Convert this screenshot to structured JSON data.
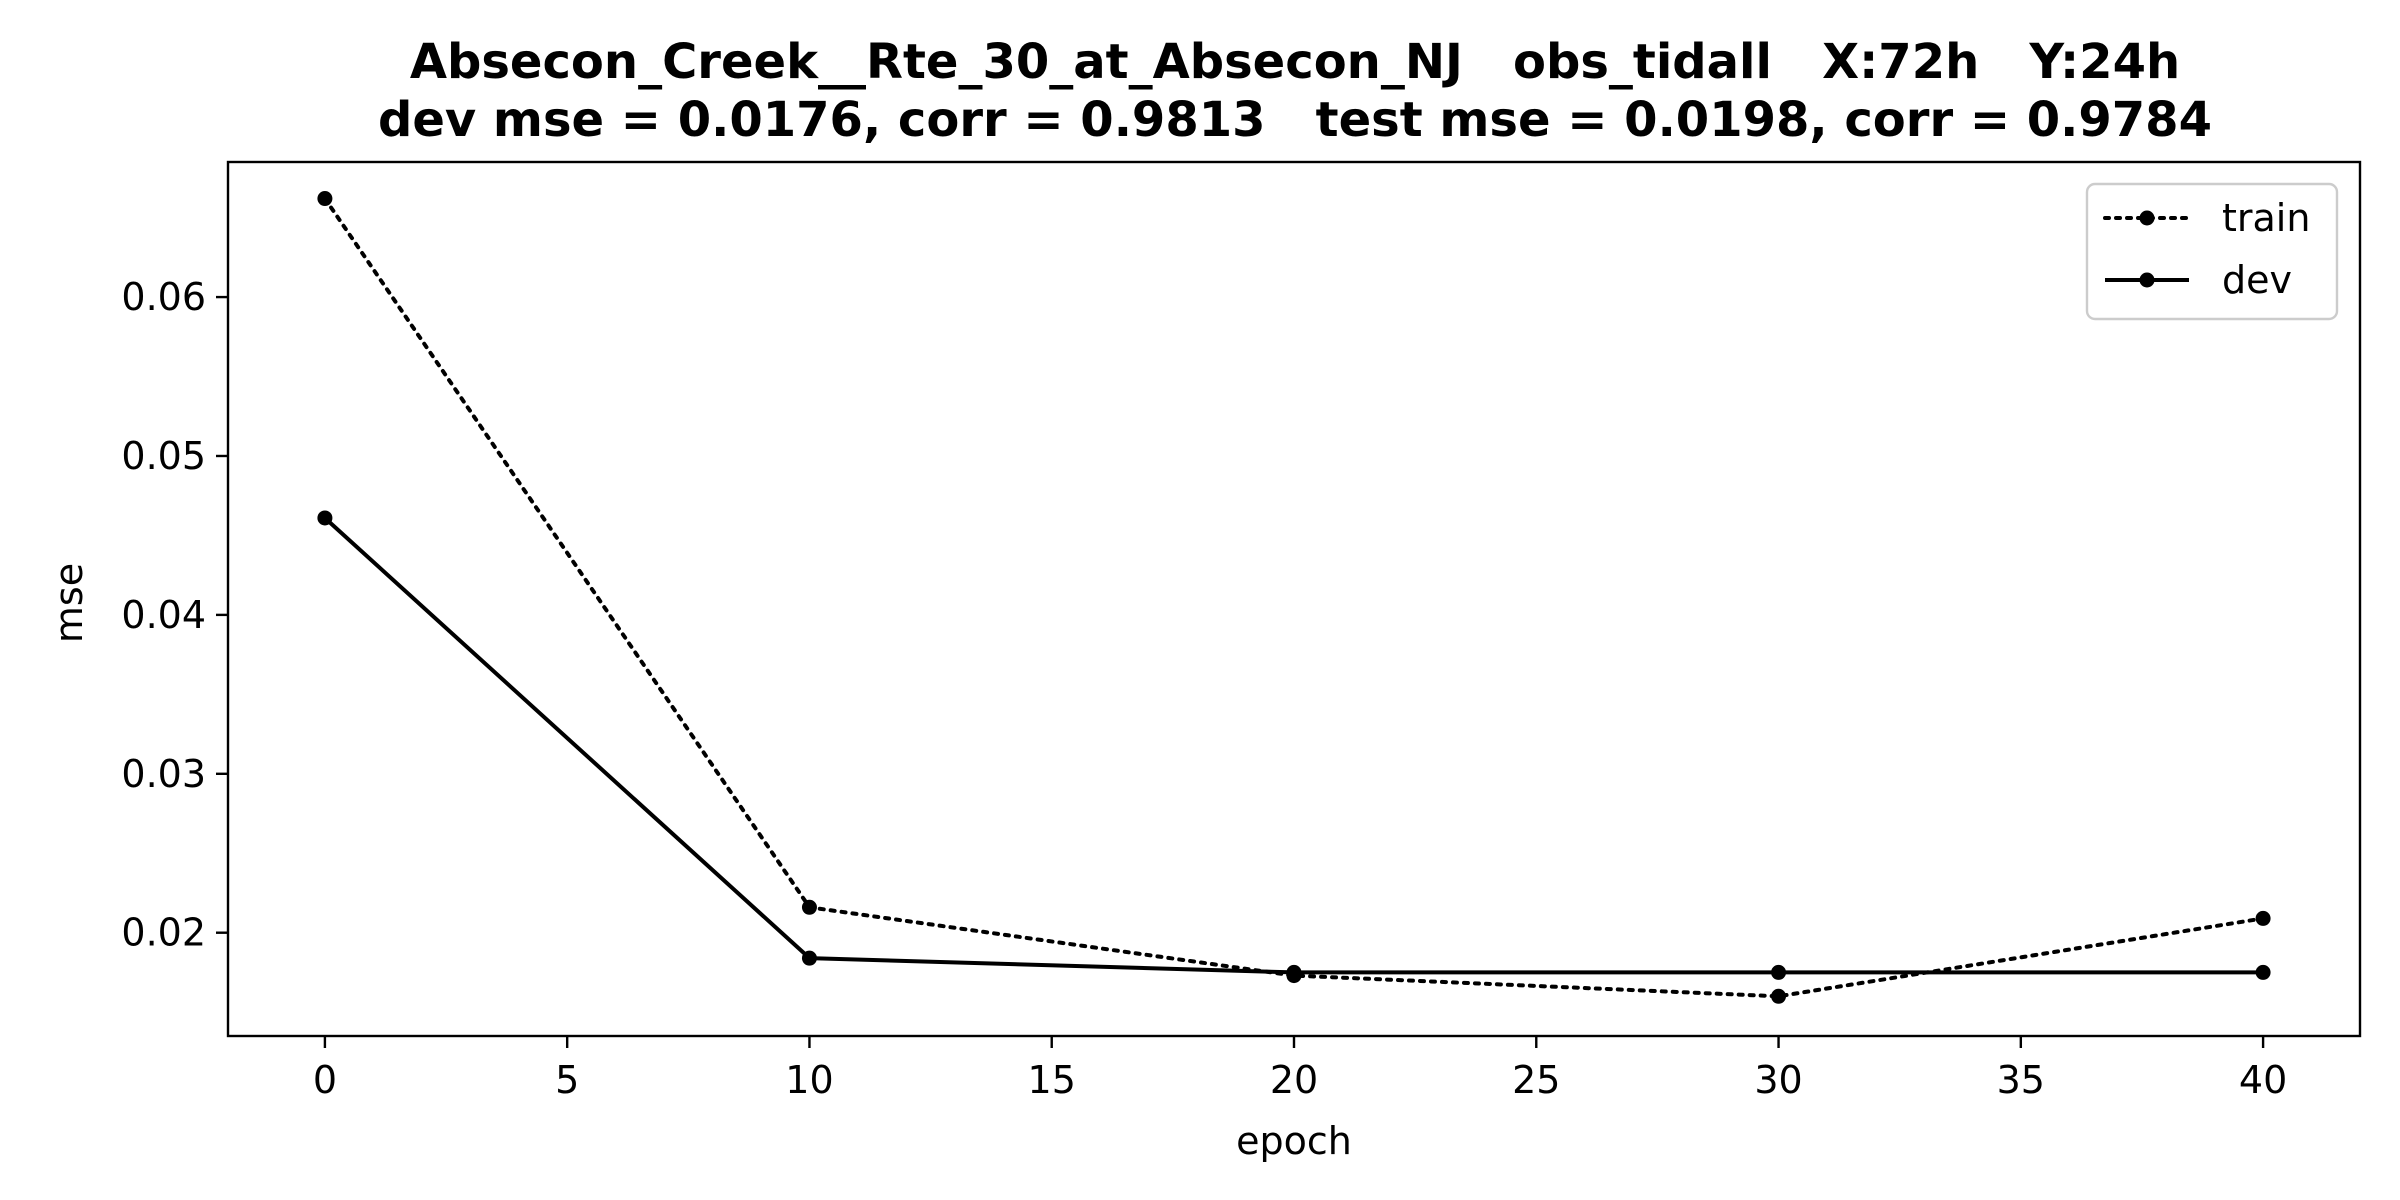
{
  "chart_data": {
    "type": "line",
    "title": "Absecon_Creek__Rte_30_at_Absecon_NJ   obs_tidall   X:72h   Y:24h",
    "subtitle": "dev mse = 0.0176, corr = 0.9813   test mse = 0.0198, corr = 0.9784",
    "xlabel": "epoch",
    "ylabel": "mse",
    "xlim": [
      -2.0,
      42.0
    ],
    "ylim": [
      0.0135,
      0.0685
    ],
    "x_ticks": [
      0,
      5,
      10,
      15,
      20,
      25,
      30,
      35,
      40
    ],
    "x_tick_labels": [
      "0",
      "5",
      "10",
      "15",
      "20",
      "25",
      "30",
      "35",
      "40"
    ],
    "y_ticks": [
      0.02,
      0.03,
      0.04,
      0.05,
      0.06
    ],
    "y_tick_labels": [
      "0.02",
      "0.03",
      "0.04",
      "0.05",
      "0.06"
    ],
    "grid": false,
    "legend_position": "top-right",
    "x": [
      0,
      10,
      20,
      30,
      40
    ],
    "series": [
      {
        "name": "train",
        "values": [
          0.0662,
          0.0216,
          0.0173,
          0.016,
          0.0209
        ],
        "style": "dotted",
        "color": "#000000"
      },
      {
        "name": "dev",
        "values": [
          0.0461,
          0.0184,
          0.0175,
          0.0175,
          0.0175
        ],
        "style": "solid",
        "color": "#000000"
      }
    ]
  }
}
